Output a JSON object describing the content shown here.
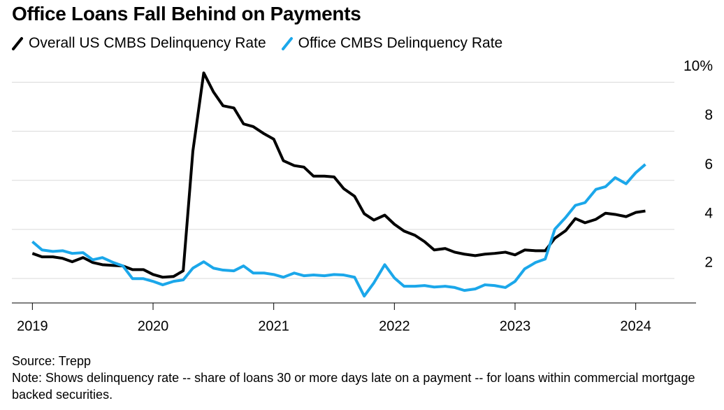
{
  "chart_data": {
    "type": "line",
    "title": "Office Loans Fall Behind on Payments",
    "source": "Source: Trepp",
    "note": "Note: Shows delinquency rate -- share of loans 30 or more days late on a payment -- for loans within commercial mortgage backed securities.",
    "x": [
      2019,
      2019.08,
      2019.17,
      2019.25,
      2019.33,
      2019.42,
      2019.5,
      2019.58,
      2019.67,
      2019.75,
      2019.83,
      2019.92,
      2020,
      2020.08,
      2020.17,
      2020.25,
      2020.33,
      2020.42,
      2020.5,
      2020.58,
      2020.67,
      2020.75,
      2020.83,
      2020.92,
      2021,
      2021.08,
      2021.17,
      2021.25,
      2021.33,
      2021.42,
      2021.5,
      2021.58,
      2021.67,
      2021.75,
      2021.83,
      2021.92,
      2022,
      2022.08,
      2022.17,
      2022.25,
      2022.33,
      2022.42,
      2022.5,
      2022.58,
      2022.67,
      2022.75,
      2022.83,
      2022.92,
      2023,
      2023.08,
      2023.17,
      2023.25,
      2023.33,
      2023.42,
      2023.5,
      2023.58,
      2023.67,
      2023.75,
      2023.83,
      2023.92,
      2024,
      2024.08
    ],
    "series": [
      {
        "name": "Overall US CMBS Delinquency Rate",
        "color": "#000000",
        "values": [
          3.02,
          2.88,
          2.88,
          2.82,
          2.68,
          2.85,
          2.65,
          2.56,
          2.53,
          2.51,
          2.36,
          2.36,
          2.16,
          2.05,
          2.08,
          2.31,
          7.19,
          10.38,
          9.61,
          9.04,
          8.95,
          8.3,
          8.19,
          7.9,
          7.68,
          6.8,
          6.6,
          6.54,
          6.17,
          6.17,
          6.14,
          5.66,
          5.35,
          4.64,
          4.38,
          4.58,
          4.21,
          3.93,
          3.76,
          3.5,
          3.16,
          3.22,
          3.07,
          2.99,
          2.93,
          2.99,
          3.02,
          3.07,
          2.96,
          3.16,
          3.13,
          3.13,
          3.64,
          3.95,
          4.44,
          4.27,
          4.41,
          4.66,
          4.61,
          4.52,
          4.69,
          4.75
        ]
      },
      {
        "name": "Office CMBS Delinquency Rate",
        "color": "#1ba7ea",
        "values": [
          3.5,
          3.16,
          3.1,
          3.13,
          3.02,
          3.05,
          2.76,
          2.85,
          2.65,
          2.51,
          1.99,
          1.99,
          1.88,
          1.74,
          1.88,
          1.94,
          2.42,
          2.68,
          2.42,
          2.34,
          2.31,
          2.51,
          2.22,
          2.22,
          2.16,
          2.05,
          2.22,
          2.11,
          2.14,
          2.11,
          2.16,
          2.14,
          2.05,
          1.28,
          1.82,
          2.56,
          2.02,
          1.68,
          1.68,
          1.71,
          1.65,
          1.68,
          1.63,
          1.51,
          1.57,
          1.74,
          1.71,
          1.63,
          1.88,
          2.39,
          2.65,
          2.79,
          4.01,
          4.49,
          4.98,
          5.09,
          5.63,
          5.74,
          6.11,
          5.86,
          6.31,
          6.65
        ]
      }
    ],
    "xlim": [
      2018.83,
      2024.5
    ],
    "xticks": [
      2019,
      2020,
      2021,
      2022,
      2023,
      2024
    ],
    "ylim": [
      1,
      10.5
    ],
    "yticks": [
      2,
      4,
      6,
      8,
      {
        "value": 10,
        "label": "10%"
      }
    ],
    "grid": true
  }
}
